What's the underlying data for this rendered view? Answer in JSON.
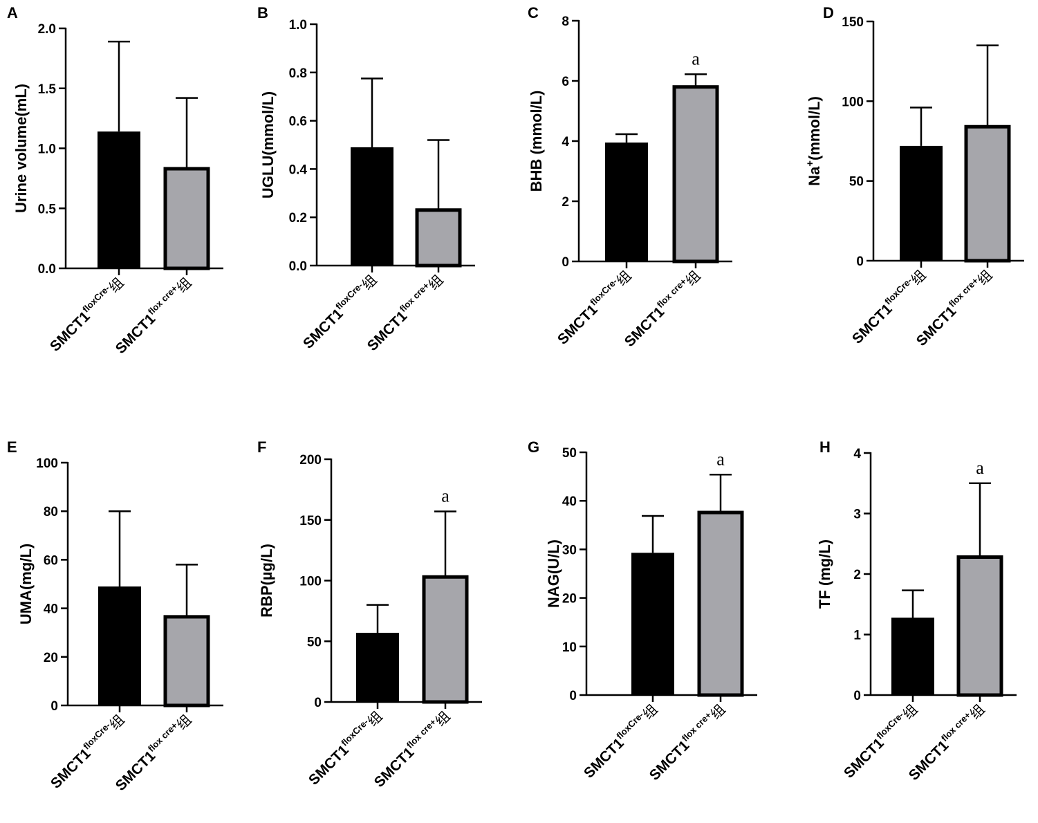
{
  "colors": {
    "bar_ctrl": "#000000",
    "bar_ko": "#a6a6ab",
    "axis": "#000000"
  },
  "chart_data": [
    {
      "panel": "A",
      "type": "bar",
      "ylabel": "Urine volume(mL)",
      "ylim": [
        0,
        2.0
      ],
      "yticks": [
        "0.0",
        "0.5",
        "1.0",
        "1.5",
        "2.0"
      ],
      "categories": [
        {
          "base": "SMCT1",
          "sup": "floxCre-",
          "suffix": "组"
        },
        {
          "base": "SMCT1",
          "sup": "flox cre+",
          "suffix": "组"
        }
      ],
      "values": [
        1.14,
        0.83
      ],
      "errors": [
        0.75,
        0.59
      ],
      "significance": [
        "",
        ""
      ]
    },
    {
      "panel": "B",
      "type": "bar",
      "ylabel": "UGLU(mmol/L)",
      "ylim": [
        0,
        1.0
      ],
      "yticks": [
        "0.0",
        "0.2",
        "0.4",
        "0.6",
        "0.8",
        "1.0"
      ],
      "categories": [
        {
          "base": "SMCT1",
          "sup": "floxCre-",
          "suffix": "组"
        },
        {
          "base": "SMCT1",
          "sup": "flox cre+",
          "suffix": "组"
        }
      ],
      "values": [
        0.49,
        0.23
      ],
      "errors": [
        0.285,
        0.29
      ],
      "significance": [
        "",
        ""
      ]
    },
    {
      "panel": "C",
      "type": "bar",
      "ylabel": "BHB (mmol/L)",
      "ylim": [
        0,
        8
      ],
      "yticks": [
        "0",
        "2",
        "4",
        "6",
        "8"
      ],
      "categories": [
        {
          "base": "SMCT1",
          "sup": "floxCre-",
          "suffix": "组"
        },
        {
          "base": "SMCT1",
          "sup": "flox cre+",
          "suffix": "组"
        }
      ],
      "values": [
        3.95,
        5.8
      ],
      "errors": [
        0.28,
        0.42
      ],
      "significance": [
        "",
        "a"
      ]
    },
    {
      "panel": "D",
      "type": "bar",
      "ylabel": "Na+(mmol/L)",
      "ylabel_base": "Na",
      "ylabel_sup": "+",
      "ylabel_rest": "(mmol/L)",
      "ylim": [
        0,
        150
      ],
      "yticks": [
        "0",
        "50",
        "100",
        "150"
      ],
      "categories": [
        {
          "base": "SMCT1",
          "sup": "floxCre-",
          "suffix": "组"
        },
        {
          "base": "SMCT1",
          "sup": "flox cre+",
          "suffix": "组"
        }
      ],
      "values": [
        72,
        84
      ],
      "errors": [
        24,
        51
      ],
      "significance": [
        "",
        ""
      ]
    },
    {
      "panel": "E",
      "type": "bar",
      "ylabel": "UMA(mg/L)",
      "ylim": [
        0,
        100
      ],
      "yticks": [
        "0",
        "20",
        "40",
        "60",
        "80",
        "100"
      ],
      "categories": [
        {
          "base": "SMCT1",
          "sup": "floxCre-",
          "suffix": "组"
        },
        {
          "base": "SMCT1",
          "sup": "flox cre+",
          "suffix": "组"
        }
      ],
      "values": [
        49,
        36.5
      ],
      "errors": [
        31,
        21.5
      ],
      "significance": [
        "",
        ""
      ]
    },
    {
      "panel": "F",
      "type": "bar",
      "ylabel": "RBP(µg/L)",
      "ylim": [
        0,
        200
      ],
      "yticks": [
        "0",
        "50",
        "100",
        "150",
        "200"
      ],
      "categories": [
        {
          "base": "SMCT1",
          "sup": "floxCre-",
          "suffix": "组"
        },
        {
          "base": "SMCT1",
          "sup": "flox cre+",
          "suffix": "组"
        }
      ],
      "values": [
        57,
        103
      ],
      "errors": [
        23,
        54
      ],
      "significance": [
        "",
        "a"
      ]
    },
    {
      "panel": "G",
      "type": "bar",
      "ylabel": "NAG(U/L)",
      "ylim": [
        0,
        50
      ],
      "yticks": [
        "0",
        "10",
        "20",
        "30",
        "40",
        "50"
      ],
      "categories": [
        {
          "base": "SMCT1",
          "sup": "floxCre-",
          "suffix": "组"
        },
        {
          "base": "SMCT1",
          "sup": "flox cre+",
          "suffix": "组"
        }
      ],
      "values": [
        29.3,
        37.6
      ],
      "errors": [
        7.6,
        7.8
      ],
      "significance": [
        "",
        "a"
      ]
    },
    {
      "panel": "H",
      "type": "bar",
      "ylabel": "TF (mg/L)",
      "ylim": [
        0,
        4
      ],
      "yticks": [
        "0",
        "1",
        "2",
        "3",
        "4"
      ],
      "categories": [
        {
          "base": "SMCT1",
          "sup": "floxCre-",
          "suffix": "组"
        },
        {
          "base": "SMCT1",
          "sup": "flox cre+",
          "suffix": "组"
        }
      ],
      "values": [
        1.28,
        2.28
      ],
      "errors": [
        0.45,
        1.22
      ],
      "significance": [
        "",
        "a"
      ]
    }
  ]
}
